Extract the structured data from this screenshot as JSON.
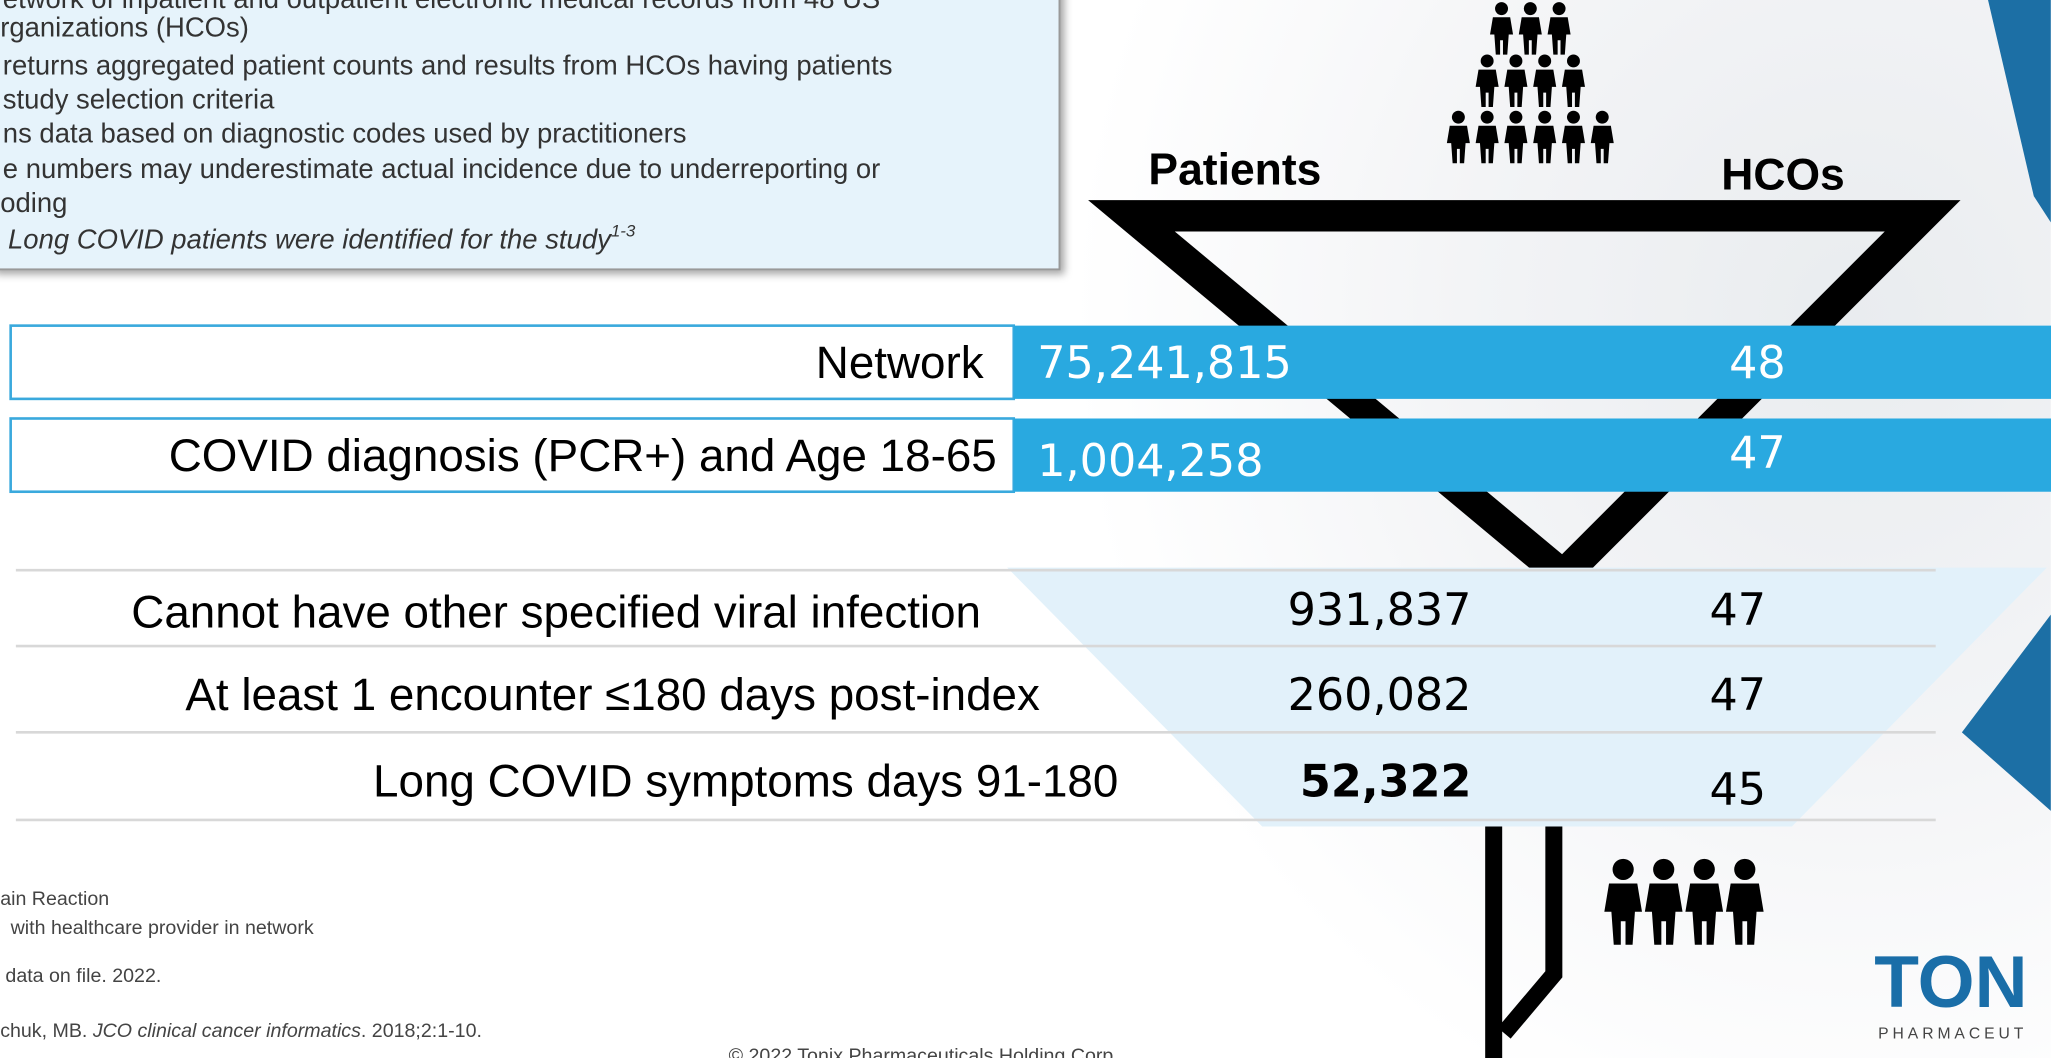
{
  "info_box": {
    "lines": [
      "etwork of inpatient and outpatient electronic medical records from 48 US",
      "rganizations (HCOs)",
      "returns aggregated patient counts and results from HCOs having patients",
      "study selection criteria",
      "ns data based on diagnostic codes used by practitioners",
      "e numbers may underestimate actual incidence due to underreporting or",
      "oding"
    ],
    "conclusion": "Long COVID patients were identified for the study",
    "conclusion_ref": "1-3"
  },
  "funnel": {
    "headers": {
      "patients": "Patients",
      "hcos": "HCOs"
    },
    "rows": [
      {
        "label": "Network",
        "patients": "75,241,815",
        "hcos": "48"
      },
      {
        "label": "COVID diagnosis (PCR+) and Age 18-65",
        "patients": "1,004,258",
        "hcos": "47"
      },
      {
        "label": "Cannot have other specified viral infection",
        "patients": "931,837",
        "hcos": "47"
      },
      {
        "label": "At least 1 encounter ≤180 days post-index",
        "patients": "260,082",
        "hcos": "47"
      },
      {
        "label": "Long COVID symptoms days 91-180",
        "patients": "52,322",
        "hcos": "45"
      }
    ]
  },
  "footnotes": [
    "ain Reaction",
    "with healthcare provider in network",
    "data on file. 2022."
  ],
  "reference": {
    "authors": "chuk, MB. ",
    "journal": "JCO clinical cancer informatics",
    "details": ". 2018;2:1-10."
  },
  "copyright": "© 2022 Tonix Pharmaceuticals Holding Corp.",
  "logo": {
    "name": "TON",
    "tagline": "PHARMACEUT"
  }
}
